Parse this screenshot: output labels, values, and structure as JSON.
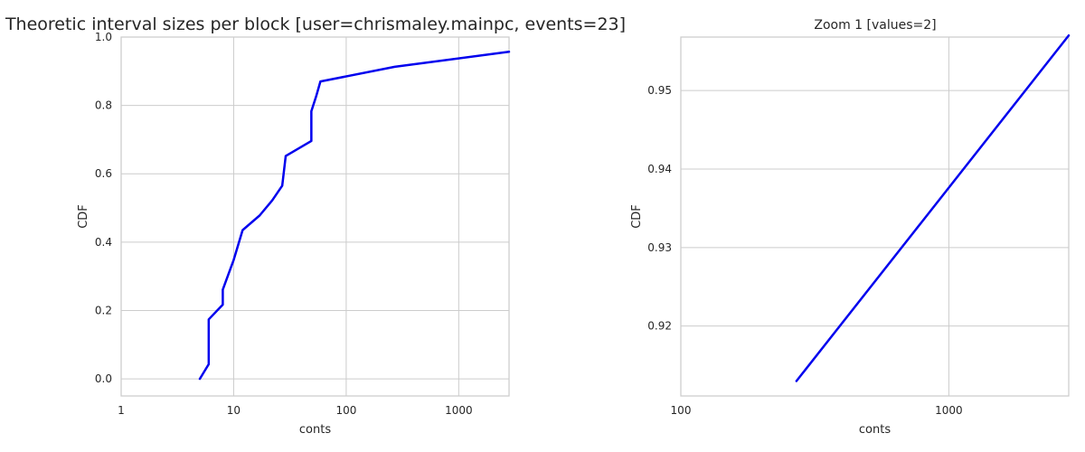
{
  "chart_data": [
    {
      "type": "line",
      "title": "Theoretic interval sizes per block [user=chrismaley.mainpc, events=23]",
      "xlabel": "conts",
      "ylabel": "CDF",
      "xscale": "log",
      "xlim": [
        1,
        2800
      ],
      "ylim": [
        -0.05,
        1.0
      ],
      "grid": true,
      "xticks": [
        1,
        10,
        100,
        1000
      ],
      "xtick_labels": [
        "1",
        "10",
        "100",
        "1000"
      ],
      "yticks": [
        0.0,
        0.2,
        0.4,
        0.6,
        0.8,
        1.0
      ],
      "ytick_labels": [
        "0.0",
        "0.2",
        "0.4",
        "0.6",
        "0.8",
        "1.0"
      ],
      "series": [
        {
          "color": "#0000ee",
          "x": [
            5,
            6,
            6,
            8,
            8,
            10,
            12,
            17,
            22,
            27,
            29,
            49,
            49,
            54,
            59,
            270,
            2800
          ],
          "y": [
            0.0,
            0.043,
            0.174,
            0.217,
            0.261,
            0.348,
            0.435,
            0.478,
            0.522,
            0.565,
            0.652,
            0.696,
            0.783,
            0.826,
            0.87,
            0.913,
            0.957
          ]
        }
      ]
    },
    {
      "type": "line",
      "title": "Zoom 1 [values=2]",
      "xlabel": "conts",
      "ylabel": "CDF",
      "xscale": "log",
      "xlim": [
        100,
        2800
      ],
      "ylim": [
        0.9111,
        0.9568
      ],
      "grid": true,
      "xticks": [
        100,
        1000
      ],
      "xtick_labels": [
        "100",
        "1000"
      ],
      "yticks": [
        0.92,
        0.93,
        0.94,
        0.95
      ],
      "ytick_labels": [
        "0.92",
        "0.93",
        "0.94",
        "0.95"
      ],
      "series": [
        {
          "color": "#0000ee",
          "x": [
            270,
            2800
          ],
          "y": [
            0.913,
            0.957
          ]
        }
      ]
    }
  ]
}
